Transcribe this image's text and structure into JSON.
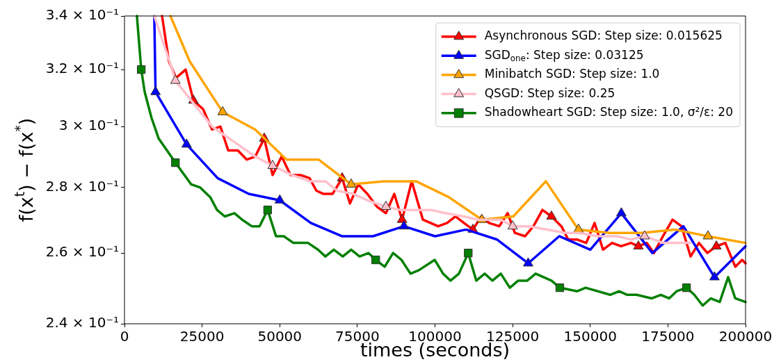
{
  "chart_data": {
    "type": "line",
    "xlabel": "times (seconds)",
    "ylabel": "f(x$^{t}$) − f(x$^{*}$)",
    "xlim": [
      0,
      200000
    ],
    "xticks": [
      0,
      25000,
      50000,
      75000,
      100000,
      125000,
      150000,
      175000,
      200000
    ],
    "ylim": [
      0.24,
      0.34
    ],
    "yticks": [
      {
        "value": 0.24,
        "label": "2.4 × 10⁻¹"
      },
      {
        "value": 0.26,
        "label": "2.6 × 10⁻¹"
      },
      {
        "value": 0.28,
        "label": "2.8 × 10⁻¹"
      },
      {
        "value": 0.3,
        "label": "3 × 10⁻¹"
      },
      {
        "value": 0.32,
        "label": "3.2 × 10⁻¹"
      },
      {
        "value": 0.34,
        "label": "3.4 × 10⁻¹"
      }
    ],
    "log": "y",
    "legend": "top right",
    "series": [
      {
        "name": "Asynchronous SGD: Step size: 0.015625",
        "color": "#ff0000",
        "x": [
          12100,
          14300,
          16600,
          19700,
          22200,
          25300,
          28200,
          30900,
          33400,
          36500,
          39400,
          42100,
          45000,
          47700,
          50600,
          53500,
          56700,
          59600,
          61800,
          64100,
          67000,
          70100,
          72600,
          75300,
          78200,
          81300,
          84200,
          86900,
          89400,
          92500,
          96100,
          101000,
          103900,
          106600,
          109300,
          112200,
          114900,
          117400,
          120700,
          123400,
          125700,
          129000,
          131700,
          134600,
          137500,
          140700,
          142900,
          145800,
          148700,
          151400,
          154100,
          157000,
          159900,
          163100,
          165500,
          168200,
          170500,
          173400,
          176500,
          179400,
          182300,
          185000,
          187700,
          190600,
          193500,
          196700,
          198900,
          200000
        ],
        "values": [
          0.34,
          0.323,
          0.317,
          0.32,
          0.309,
          0.306,
          0.299,
          0.3,
          0.292,
          0.292,
          0.289,
          0.29,
          0.296,
          0.284,
          0.29,
          0.284,
          0.284,
          0.283,
          0.279,
          0.278,
          0.278,
          0.283,
          0.275,
          0.281,
          0.278,
          0.274,
          0.272,
          0.278,
          0.27,
          0.282,
          0.27,
          0.268,
          0.269,
          0.271,
          0.269,
          0.267,
          0.271,
          0.269,
          0.268,
          0.272,
          0.266,
          0.265,
          0.268,
          0.273,
          0.271,
          0.268,
          0.264,
          0.264,
          0.263,
          0.269,
          0.261,
          0.263,
          0.262,
          0.263,
          0.262,
          0.263,
          0.26,
          0.265,
          0.27,
          0.268,
          0.259,
          0.263,
          0.26,
          0.262,
          0.263,
          0.256,
          0.258,
          0.257
        ]
      },
      {
        "type": "scatter",
        "color": "#ff0000",
        "marker": "triangle",
        "x": [
          22200,
          45000,
          70100,
          89400,
          112200,
          137500,
          165500,
          190600
        ],
        "values": [
          0.309,
          0.296,
          0.283,
          0.27,
          0.267,
          0.271,
          0.262,
          0.262
        ]
      },
      {
        "name": "SGD$_{one}$: Step size: 0.03125",
        "color": "#0000ff",
        "x": [
          9600,
          10000,
          20000,
          30000,
          40000,
          50000,
          60000,
          70000,
          80000,
          90000,
          100000,
          110000,
          120000,
          130000,
          140000,
          150000,
          160000,
          170000,
          180000,
          190000,
          200000
        ],
        "values": [
          0.34,
          0.312,
          0.294,
          0.283,
          0.278,
          0.276,
          0.269,
          0.265,
          0.265,
          0.268,
          0.265,
          0.267,
          0.264,
          0.257,
          0.265,
          0.261,
          0.272,
          0.26,
          0.268,
          0.253,
          0.262
        ]
      },
      {
        "type": "scatter",
        "color": "#0000ff",
        "marker": "triangle",
        "x": [
          10000,
          20000,
          50000,
          90000,
          130000,
          160000,
          190000
        ],
        "values": [
          0.312,
          0.294,
          0.276,
          0.268,
          0.257,
          0.272,
          0.253
        ]
      },
      {
        "name": "Minibatch SGD: Step size: 1.0",
        "color": "#ffa500",
        "x": [
          14800,
          21000,
          31600,
          42100,
          52200,
          62500,
          73000,
          83500,
          93900,
          104400,
          115100,
          125200,
          135700,
          146200,
          156300,
          166600,
          177200,
          187900,
          200000
        ],
        "values": [
          0.34,
          0.323,
          0.305,
          0.299,
          0.289,
          0.289,
          0.281,
          0.282,
          0.282,
          0.277,
          0.27,
          0.271,
          0.282,
          0.267,
          0.266,
          0.266,
          0.267,
          0.265,
          0.263
        ]
      },
      {
        "type": "scatter",
        "color": "#ffa500",
        "marker": "triangle",
        "x": [
          31600,
          73000,
          115100,
          146200,
          187900
        ],
        "values": [
          0.305,
          0.281,
          0.27,
          0.267,
          0.265
        ]
      },
      {
        "name": "QSGD: Step size: 0.25",
        "color": "#ffc0cb",
        "x": [
          9600,
          14800,
          16400,
          21500,
          28200,
          36500,
          42100,
          47700,
          54000,
          59600,
          64700,
          68500,
          73700,
          78200,
          84200,
          88700,
          93800,
          98700,
          103300,
          109300,
          113800,
          118300,
          121200,
          125000,
          130100,
          136200,
          142000,
          146500,
          152500,
          158600,
          163100,
          167500,
          173400,
          177900,
          182300
        ],
        "values": [
          0.34,
          0.322,
          0.316,
          0.309,
          0.3,
          0.294,
          0.29,
          0.287,
          0.284,
          0.282,
          0.282,
          0.279,
          0.278,
          0.276,
          0.274,
          0.273,
          0.273,
          0.273,
          0.272,
          0.271,
          0.27,
          0.27,
          0.27,
          0.268,
          0.268,
          0.267,
          0.266,
          0.266,
          0.265,
          0.265,
          0.264,
          0.265,
          0.263,
          0.263,
          0.263
        ]
      },
      {
        "type": "scatter",
        "color": "#ffc0cb",
        "marker": "triangle",
        "x": [
          16400,
          47700,
          84200,
          125000,
          167500
        ],
        "values": [
          0.316,
          0.287,
          0.274,
          0.268,
          0.265
        ]
      },
      {
        "name": "Shadowheart SGD: Step size: 1.0, σ²/ε: 20",
        "color": "#008000",
        "x": [
          4000,
          5400,
          6500,
          8700,
          11000,
          16400,
          21500,
          24400,
          27600,
          29800,
          32300,
          35400,
          37900,
          41000,
          43500,
          46100,
          48800,
          51300,
          54400,
          59100,
          62300,
          64700,
          67400,
          70300,
          73000,
          75700,
          78600,
          80900,
          83800,
          86500,
          89200,
          92100,
          94800,
          99900,
          102600,
          105000,
          107700,
          110700,
          113300,
          116000,
          118500,
          121200,
          124100,
          126800,
          129700,
          132400,
          137500,
          140200,
          145800,
          148500,
          156400,
          159300,
          161900,
          164900,
          169800,
          172700,
          175400,
          177800,
          181000,
          183500,
          186200,
          188800,
          191700,
          194400,
          196700,
          200000
        ],
        "values": [
          0.34,
          0.32,
          0.312,
          0.303,
          0.296,
          0.288,
          0.281,
          0.28,
          0.277,
          0.273,
          0.271,
          0.272,
          0.27,
          0.268,
          0.268,
          0.273,
          0.265,
          0.265,
          0.263,
          0.263,
          0.261,
          0.259,
          0.261,
          0.259,
          0.261,
          0.259,
          0.26,
          0.258,
          0.256,
          0.26,
          0.258,
          0.254,
          0.255,
          0.258,
          0.254,
          0.252,
          0.254,
          0.26,
          0.252,
          0.254,
          0.252,
          0.254,
          0.25,
          0.252,
          0.252,
          0.254,
          0.252,
          0.25,
          0.249,
          0.25,
          0.248,
          0.249,
          0.248,
          0.248,
          0.247,
          0.248,
          0.247,
          0.249,
          0.25,
          0.248,
          0.245,
          0.247,
          0.246,
          0.253,
          0.247,
          0.246
        ]
      },
      {
        "type": "scatter",
        "color": "#008000",
        "marker": "square",
        "x": [
          5400,
          16400,
          46100,
          80900,
          110700,
          140200,
          181000
        ],
        "values": [
          0.32,
          0.288,
          0.273,
          0.258,
          0.26,
          0.25,
          0.25
        ]
      }
    ]
  }
}
